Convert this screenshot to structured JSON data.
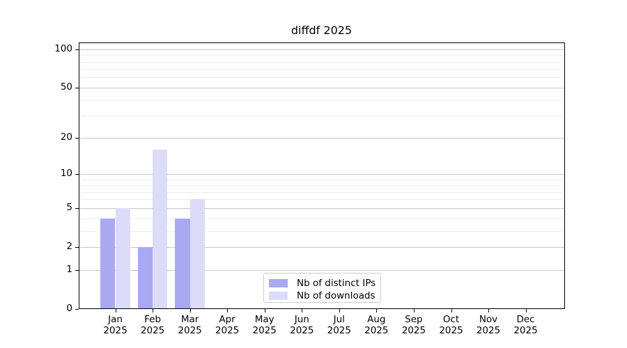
{
  "title": "diffdf 2025",
  "chart_data": {
    "type": "bar",
    "title": "diffdf 2025",
    "categories": [
      "Jan",
      "Feb",
      "Mar",
      "Apr",
      "May",
      "Jun",
      "Jul",
      "Aug",
      "Sep",
      "Oct",
      "Nov",
      "Dec"
    ],
    "year_label": "2025",
    "series": [
      {
        "name": "Nb of distinct IPs",
        "color": "#a9a9f2",
        "values": [
          4,
          2,
          4,
          0,
          0,
          0,
          0,
          0,
          0,
          0,
          0,
          0
        ]
      },
      {
        "name": "Nb of downloads",
        "color": "#dcdcf8",
        "values": [
          5,
          16,
          6,
          0,
          0,
          0,
          0,
          0,
          0,
          0,
          0,
          0
        ]
      }
    ],
    "xlabel": "",
    "ylabel": "",
    "y_scale": "log1p",
    "y_ticks_major": [
      0,
      1,
      2,
      5,
      10,
      20,
      50,
      100
    ],
    "y_ticks_minor": [
      3,
      4,
      6,
      7,
      8,
      9,
      30,
      40,
      60,
      70,
      80,
      90
    ],
    "ylim": [
      0,
      113
    ],
    "grid": "both",
    "legend_position": "lower-center"
  }
}
